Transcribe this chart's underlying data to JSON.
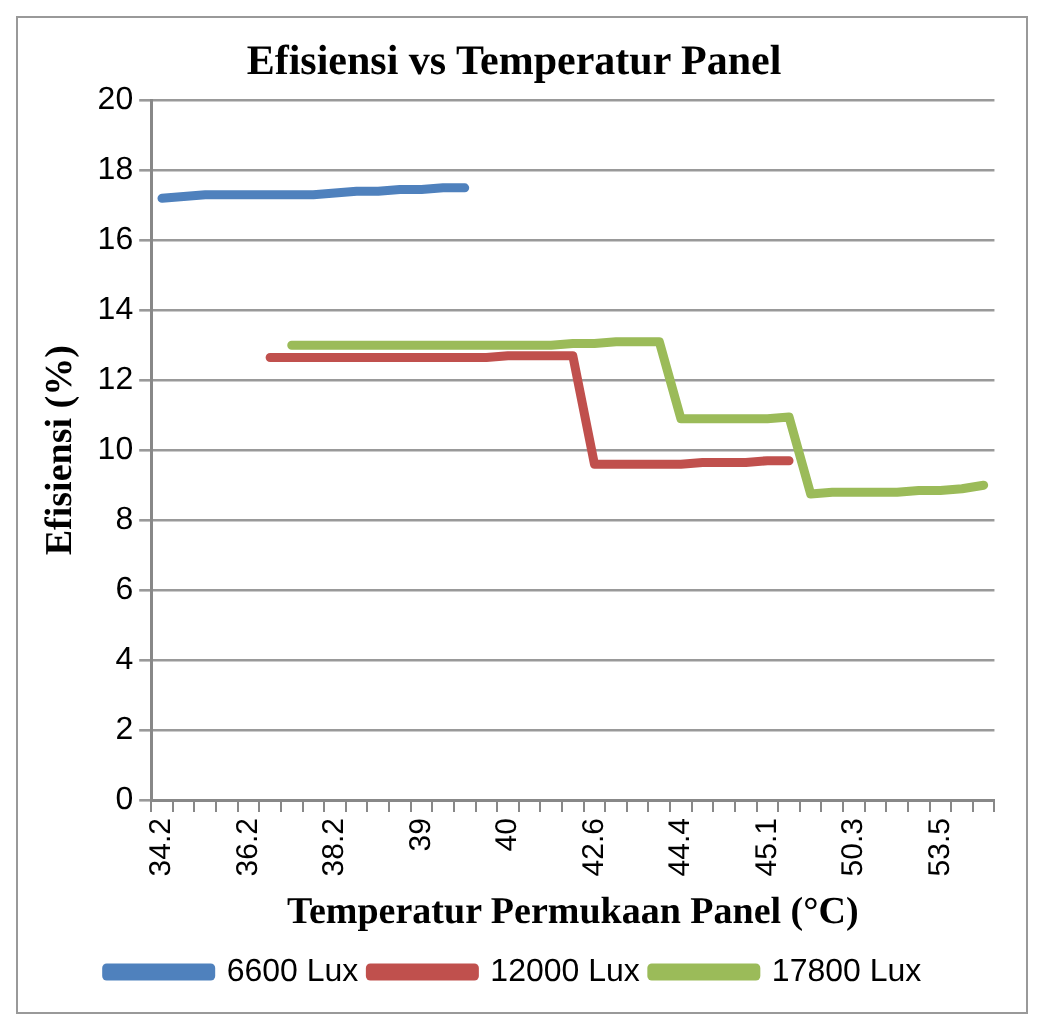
{
  "chart_data": {
    "type": "line",
    "title": "Efisiensi vs Temperatur Panel",
    "xlabel": "Temperatur Permukaan Panel (°C)",
    "ylabel": "Efisiensi (%)",
    "categories": [
      "34.2",
      null,
      null,
      null,
      "36.2",
      null,
      null,
      null,
      "38.2",
      null,
      null,
      null,
      "39",
      null,
      null,
      null,
      "40",
      null,
      null,
      null,
      "42.6",
      null,
      null,
      null,
      "44.4",
      null,
      null,
      null,
      "45.1",
      null,
      null,
      null,
      "50.3",
      null,
      null,
      null,
      "53.5",
      null,
      null
    ],
    "series": [
      {
        "name": "6600 Lux",
        "color": "#4f81bd",
        "values": [
          17.2,
          17.25,
          17.3,
          17.3,
          17.3,
          17.3,
          17.3,
          17.3,
          17.35,
          17.4,
          17.4,
          17.45,
          17.45,
          17.5,
          17.5,
          null,
          null,
          null,
          null,
          null,
          null,
          null,
          null,
          null,
          null,
          null,
          null,
          null,
          null,
          null,
          null,
          null,
          null,
          null,
          null,
          null,
          null,
          null,
          null
        ]
      },
      {
        "name": "12000 Lux",
        "color": "#c0504d",
        "values": [
          null,
          null,
          null,
          null,
          null,
          12.65,
          12.65,
          12.65,
          12.65,
          12.65,
          12.65,
          12.65,
          12.65,
          12.65,
          12.65,
          12.65,
          12.7,
          12.7,
          12.7,
          12.7,
          9.6,
          9.6,
          9.6,
          9.6,
          9.6,
          9.65,
          9.65,
          9.65,
          9.7,
          9.7,
          null,
          null,
          null,
          null,
          null,
          null,
          null,
          null,
          null
        ]
      },
      {
        "name": "17800 Lux",
        "color": "#9bbb59",
        "values": [
          null,
          null,
          null,
          null,
          null,
          null,
          13.0,
          13.0,
          13.0,
          13.0,
          13.0,
          13.0,
          13.0,
          13.0,
          13.0,
          13.0,
          13.0,
          13.0,
          13.0,
          13.05,
          13.05,
          13.1,
          13.1,
          13.1,
          10.9,
          10.9,
          10.9,
          10.9,
          10.9,
          10.95,
          8.75,
          8.8,
          8.8,
          8.8,
          8.8,
          8.85,
          8.85,
          8.9,
          9.0
        ]
      }
    ],
    "ylim": [
      0,
      20
    ],
    "yticks": [
      0,
      2,
      4,
      6,
      8,
      10,
      12,
      14,
      16,
      18,
      20
    ],
    "grid": "y",
    "legend": "bottom",
    "marker": "none",
    "line_style": "solid"
  }
}
